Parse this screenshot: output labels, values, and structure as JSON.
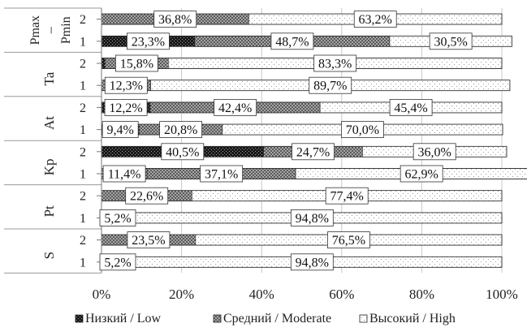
{
  "chart_data": {
    "type": "bar",
    "orientation": "horizontal",
    "stacked": "percent",
    "groups": [
      {
        "name": "Pmax – Pmin",
        "rows": [
          {
            "label": "2",
            "values": [
              0.0,
              36.8,
              63.2
            ],
            "data_labels": [
              "",
              "36,8%",
              "63,2%"
            ]
          },
          {
            "label": "1",
            "values": [
              23.3,
              48.7,
              30.5
            ],
            "data_labels": [
              "23,3%",
              "48,7%",
              "30,5%"
            ]
          }
        ]
      },
      {
        "name": "Ta",
        "rows": [
          {
            "label": "2",
            "values": [
              0.9,
              15.8,
              83.3
            ],
            "data_labels": [
              "",
              "15,8%",
              "83,3%"
            ]
          },
          {
            "label": "1",
            "values": [
              0.0,
              12.3,
              89.7
            ],
            "data_labels": [
              "",
              "12,3%",
              "89,7%"
            ]
          }
        ]
      },
      {
        "name": "At",
        "rows": [
          {
            "label": "2",
            "values": [
              0.0,
              12.2,
              42.4,
              45.4
            ],
            "data_labels": [
              "",
              "12,2%",
              "42,4%",
              "45,4%"
            ],
            "series_index": [
              0,
              0,
              1,
              2
            ]
          },
          {
            "label": "1",
            "values": [
              0.0,
              9.4,
              20.8,
              70.0
            ],
            "data_labels": [
              "",
              "9,4%",
              "20,8%",
              "70,0%"
            ],
            "series_index": [
              0,
              0,
              1,
              2
            ]
          }
        ]
      },
      {
        "name": "Kp",
        "rows": [
          {
            "label": "2",
            "values": [
              40.5,
              24.7,
              36.0
            ],
            "data_labels": [
              "40,5%",
              "24,7%",
              "36,0%"
            ]
          },
          {
            "label": "1",
            "values": [
              0.0,
              11.4,
              37.1,
              62.9
            ],
            "data_labels": [
              "",
              "11,4%",
              "37,1%",
              "62,9%"
            ],
            "series_index": [
              0,
              1,
              1,
              2
            ]
          }
        ]
      },
      {
        "name": "Pt",
        "rows": [
          {
            "label": "2",
            "values": [
              0.0,
              22.6,
              77.4
            ],
            "data_labels": [
              "",
              "22,6%",
              "77,4%"
            ]
          },
          {
            "label": "1",
            "values": [
              0.0,
              5.2,
              94.8
            ],
            "data_labels": [
              "",
              "5,2%",
              "94,8%"
            ]
          }
        ]
      },
      {
        "name": "S",
        "rows": [
          {
            "label": "2",
            "values": [
              0.0,
              23.5,
              76.5
            ],
            "data_labels": [
              "",
              "23,5%",
              "76,5%"
            ]
          },
          {
            "label": "1",
            "values": [
              0.0,
              5.2,
              94.8
            ],
            "data_labels": [
              "",
              "5,2%",
              "94,8%"
            ]
          }
        ]
      }
    ],
    "series": [
      {
        "name": "Низкий / Low",
        "pattern": "dense-dark"
      },
      {
        "name": "Средний / Moderate",
        "pattern": "crosshatch"
      },
      {
        "name": "Высокий / High",
        "pattern": "light-dots"
      }
    ],
    "x_ticks": [
      "0%",
      "20%",
      "40%",
      "60%",
      "80%",
      "100%"
    ],
    "xlim": [
      0,
      100
    ],
    "grid": true,
    "legend_position": "bottom",
    "title": "",
    "xlabel": "",
    "ylabel": ""
  }
}
